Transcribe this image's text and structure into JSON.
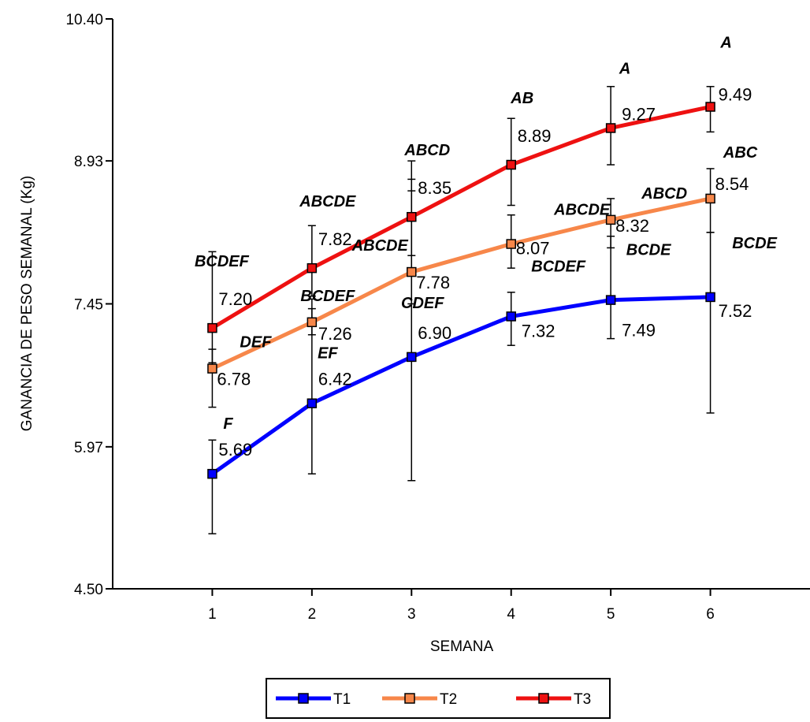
{
  "chart_data": {
    "type": "line",
    "xlabel": "SEMANA",
    "ylabel": "GANANCIA DE PESO SEMANAL (Kg)",
    "ylim": [
      4.5,
      10.4
    ],
    "xlim": [
      0,
      7
    ],
    "y_ticks": [
      "4.50",
      "5.97",
      "7.45",
      "8.93",
      "10.40"
    ],
    "x": [
      1,
      2,
      3,
      4,
      5,
      6
    ],
    "x_tick_labels": [
      "1",
      "2",
      "3",
      "4",
      "5",
      "6"
    ],
    "grid": false,
    "legend_position": "bottom",
    "series": [
      {
        "name": "T1",
        "color": "#0000ff",
        "values": [
          5.69,
          6.42,
          6.9,
          7.32,
          7.49,
          7.52
        ],
        "value_labels": [
          "5.69",
          "6.42",
          "6.90",
          "7.32",
          "7.49",
          "7.52"
        ],
        "group_labels": [
          "F",
          "EF",
          "CDEF",
          "BCDEF",
          "BCDE",
          "BCDE"
        ],
        "error_low": [
          5.07,
          5.69,
          5.62,
          7.02,
          7.09,
          6.32
        ],
        "error_high": [
          6.04,
          7.5,
          8.74,
          7.57,
          8.15,
          8.19
        ]
      },
      {
        "name": "T2",
        "color": "#f7874a",
        "values": [
          6.78,
          7.26,
          7.78,
          8.07,
          8.32,
          8.54
        ],
        "value_labels": [
          "6.78",
          "7.26",
          "7.78",
          "8.07",
          "8.32",
          "8.54"
        ],
        "group_labels": [
          "DEF",
          "BCDEF",
          "ABCDE",
          "ABCDE",
          "ABCD",
          "ABC"
        ],
        "error_low": [
          6.38,
          7.13,
          7.45,
          7.82,
          8.03,
          8.19
        ],
        "error_high": [
          6.98,
          7.4,
          8.62,
          8.37,
          8.54,
          8.85
        ]
      },
      {
        "name": "T3",
        "color": "#ee1111",
        "values": [
          7.2,
          7.82,
          8.35,
          8.89,
          9.27,
          9.49
        ],
        "value_labels": [
          "7.20",
          "7.82",
          "8.35",
          "8.89",
          "9.27",
          "9.49"
        ],
        "group_labels": [
          "BCDEF",
          "ABCDE",
          "ABCD",
          "AB",
          "A",
          "A"
        ],
        "error_low": [
          6.84,
          7.53,
          7.95,
          8.47,
          8.89,
          9.23
        ],
        "error_high": [
          7.99,
          8.26,
          8.93,
          9.37,
          9.7,
          9.7
        ]
      }
    ]
  }
}
